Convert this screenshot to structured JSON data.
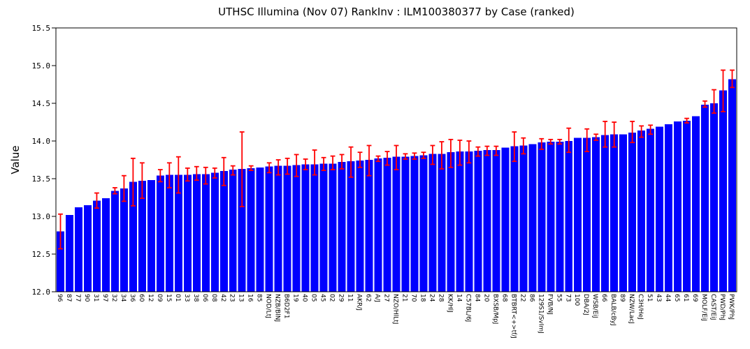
{
  "chart_data": {
    "type": "bar",
    "title": "UTHSC Illumina (Nov 07) RankInv : ILM100380377 by Case (ranked)",
    "ylabel": "Value",
    "xlabel": "",
    "ylim": [
      12.0,
      15.5
    ],
    "yticks": [
      12.0,
      12.5,
      13.0,
      13.5,
      14.0,
      14.5,
      15.0,
      15.5
    ],
    "grid": false,
    "legend": "none",
    "bar_color": "#0000FF",
    "error_color": "#FF0000",
    "axis_color": "#000000",
    "categories": [
      "96",
      "87",
      "77",
      "90",
      "31",
      "97",
      "32",
      "34",
      "36",
      "60",
      "12",
      "09",
      "15",
      "01",
      "33",
      "38",
      "06",
      "08",
      "42",
      "23",
      "13",
      "16",
      "85",
      "NOD/LtJ",
      "NZB/BlNJ",
      "B6D2F1",
      "19",
      "40",
      "05",
      "45",
      "02",
      "29",
      "11",
      "AKR/J",
      "62",
      "A/J",
      "27",
      "NZO/HlLtJ",
      "21",
      "70",
      "18",
      "24",
      "28",
      "KK/HlJ",
      "14",
      "C57BL/6J",
      "84",
      "20",
      "BXSB/MpJ",
      "68",
      "BTBRT<+>tf/J",
      "22",
      "86",
      "129S1/SvImJ",
      "FVB/NJ",
      "55",
      "73",
      "100",
      "DBA/2J",
      "WSB/EiJ",
      "66",
      "BALB/cByJ",
      "89",
      "NZW/LacJ",
      "C3H/HeJ",
      "51",
      "43",
      "44",
      "65",
      "61",
      "69",
      "MOLF/EiJ",
      "CAST/EiJ",
      "PWD/PhJ",
      "PWK/PhJ"
    ],
    "values": [
      12.8,
      13.02,
      13.12,
      13.15,
      13.21,
      13.24,
      13.34,
      13.37,
      13.46,
      13.47,
      13.48,
      13.54,
      13.55,
      13.55,
      13.55,
      13.56,
      13.56,
      13.58,
      13.6,
      13.62,
      13.63,
      13.64,
      13.65,
      13.66,
      13.67,
      13.67,
      13.68,
      13.69,
      13.69,
      13.7,
      13.7,
      13.72,
      13.73,
      13.74,
      13.75,
      13.77,
      13.78,
      13.79,
      13.79,
      13.8,
      13.81,
      13.83,
      13.83,
      13.85,
      13.86,
      13.86,
      13.87,
      13.88,
      13.88,
      13.91,
      13.93,
      13.94,
      13.96,
      13.98,
      13.99,
      13.99,
      14.0,
      14.04,
      14.04,
      14.05,
      14.08,
      14.09,
      14.09,
      14.11,
      14.14,
      14.16,
      14.19,
      14.22,
      14.26,
      14.27,
      14.33,
      14.48,
      14.5,
      14.67,
      14.82
    ],
    "error_ranges": [
      [
        12.57,
        13.03
      ],
      null,
      null,
      null,
      [
        13.11,
        13.31
      ],
      null,
      [
        13.3,
        13.38
      ],
      [
        13.2,
        13.54
      ],
      [
        13.14,
        13.77
      ],
      [
        13.24,
        13.71
      ],
      null,
      [
        13.46,
        13.62
      ],
      [
        13.38,
        13.71
      ],
      [
        13.31,
        13.79
      ],
      [
        13.47,
        13.64
      ],
      [
        13.48,
        13.66
      ],
      [
        13.43,
        13.65
      ],
      [
        13.51,
        13.64
      ],
      [
        13.41,
        13.78
      ],
      [
        13.55,
        13.67
      ],
      [
        13.13,
        14.12
      ],
      [
        13.61,
        13.67
      ],
      null,
      [
        13.58,
        13.71
      ],
      [
        13.55,
        13.75
      ],
      [
        13.56,
        13.77
      ],
      [
        13.53,
        13.82
      ],
      [
        13.62,
        13.76
      ],
      [
        13.55,
        13.88
      ],
      [
        13.61,
        13.78
      ],
      [
        13.62,
        13.8
      ],
      [
        13.63,
        13.82
      ],
      [
        13.52,
        13.92
      ],
      [
        13.65,
        13.85
      ],
      [
        13.54,
        13.94
      ],
      [
        13.73,
        13.8
      ],
      [
        13.68,
        13.86
      ],
      [
        13.62,
        13.94
      ],
      [
        13.76,
        13.83
      ],
      [
        13.76,
        13.84
      ],
      [
        13.77,
        13.85
      ],
      [
        13.69,
        13.94
      ],
      [
        13.63,
        13.99
      ],
      [
        13.65,
        14.02
      ],
      [
        13.68,
        14.01
      ],
      [
        13.71,
        14.0
      ],
      [
        13.8,
        13.92
      ],
      [
        13.81,
        13.93
      ],
      [
        13.81,
        13.93
      ],
      null,
      [
        13.73,
        14.12
      ],
      [
        13.83,
        14.04
      ],
      null,
      [
        13.89,
        14.03
      ],
      [
        13.96,
        14.02
      ],
      [
        13.96,
        14.02
      ],
      [
        13.85,
        14.17
      ],
      null,
      [
        13.86,
        14.16
      ],
      [
        14.01,
        14.09
      ],
      [
        13.92,
        14.26
      ],
      [
        13.92,
        14.25
      ],
      null,
      [
        13.98,
        14.26
      ],
      [
        14.05,
        14.2
      ],
      [
        14.09,
        14.21
      ],
      null,
      null,
      null,
      [
        14.24,
        14.3
      ],
      null,
      [
        14.45,
        14.53
      ],
      [
        14.37,
        14.68
      ],
      [
        14.39,
        14.94
      ],
      [
        14.71,
        14.94
      ]
    ]
  }
}
